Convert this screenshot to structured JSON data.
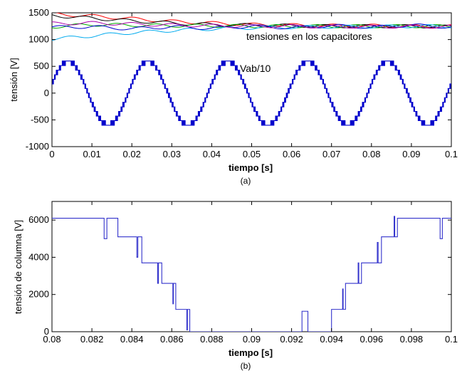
{
  "chart_data": [
    {
      "type": "line",
      "xlabel": "tiempo [s]",
      "ylabel": "tensión [V]",
      "xlim": [
        0,
        0.1
      ],
      "ylim": [
        -1000,
        1500
      ],
      "xticks": [
        "0",
        "0.01",
        "0.02",
        "0.03",
        "0.04",
        "0.05",
        "0.06",
        "0.07",
        "0.08",
        "0.09",
        "0.1"
      ],
      "yticks": [
        "-1000",
        "-500",
        "0",
        "500",
        "1000",
        "1500"
      ],
      "grid": false,
      "caption": "(a)",
      "annotations": [
        {
          "text": "tensiones en los capacitores",
          "x": 0.052,
          "y": 1080
        },
        {
          "text": "Vab/10",
          "x": 0.052,
          "y": 580
        }
      ],
      "series": [
        {
          "label": "Vab/10",
          "color": "#0000cc",
          "kind": "staircase-sine",
          "amplitude": 600,
          "frequency_hz": 50,
          "levels": 7
        },
        {
          "color": "#ff0000",
          "x": [
            0,
            0.01,
            0.02,
            0.03,
            0.04,
            0.05,
            0.06,
            0.07,
            0.08,
            0.09,
            0.1
          ],
          "values": [
            1480,
            1440,
            1390,
            1340,
            1310,
            1280,
            1270,
            1260,
            1260,
            1250,
            1250
          ]
        },
        {
          "color": "#000000",
          "x": [
            0,
            0.01,
            0.02,
            0.03,
            0.04,
            0.05,
            0.06,
            0.07,
            0.08,
            0.09,
            0.1
          ],
          "values": [
            1450,
            1400,
            1350,
            1310,
            1280,
            1270,
            1260,
            1250,
            1250,
            1250,
            1240
          ]
        },
        {
          "color": "#00aa00",
          "x": [
            0,
            0.01,
            0.02,
            0.03,
            0.04,
            0.05,
            0.06,
            0.07,
            0.08,
            0.09,
            0.1
          ],
          "values": [
            1240,
            1280,
            1270,
            1260,
            1260,
            1250,
            1250,
            1250,
            1250,
            1250,
            1250
          ]
        },
        {
          "color": "#00aaee",
          "x": [
            0,
            0.01,
            0.02,
            0.03,
            0.04,
            0.05,
            0.06,
            0.07,
            0.08,
            0.09,
            0.1
          ],
          "values": [
            1010,
            1070,
            1130,
            1170,
            1200,
            1220,
            1230,
            1240,
            1240,
            1250,
            1250
          ]
        },
        {
          "color": "#0000cc",
          "x": [
            0,
            0.01,
            0.02,
            0.03,
            0.04,
            0.05,
            0.06,
            0.07,
            0.08,
            0.09,
            0.1
          ],
          "values": [
            1230,
            1240,
            1200,
            1240,
            1210,
            1250,
            1220,
            1260,
            1230,
            1270,
            1230
          ]
        },
        {
          "color": "#aa00aa",
          "x": [
            0,
            0.01,
            0.02,
            0.03,
            0.04,
            0.05,
            0.06,
            0.07,
            0.08,
            0.09,
            0.1
          ],
          "values": [
            1300,
            1310,
            1290,
            1270,
            1260,
            1250,
            1250,
            1240,
            1240,
            1240,
            1240
          ]
        }
      ]
    },
    {
      "type": "line",
      "xlabel": "tiempo [s]",
      "ylabel": "tensión de columna [V]",
      "xlim": [
        0.08,
        0.1
      ],
      "ylim": [
        0,
        7000
      ],
      "xticks": [
        "0.08",
        "0.082",
        "0.084",
        "0.086",
        "0.088",
        "0.09",
        "0.092",
        "0.094",
        "0.096",
        "0.098",
        "0.1"
      ],
      "yticks": [
        "0",
        "2000",
        "4000",
        "6000"
      ],
      "grid": false,
      "caption": "(b)",
      "series": [
        {
          "color": "#3333cc",
          "kind": "step",
          "x": [
            0.08,
            0.0833,
            0.0845,
            0.0855,
            0.0862,
            0.0869,
            0.094,
            0.0947,
            0.0955,
            0.0965,
            0.0973,
            0.1
          ],
          "values": [
            6100,
            5100,
            3700,
            2600,
            1200,
            0,
            1200,
            2600,
            3700,
            5100,
            6100,
            6100
          ]
        }
      ]
    }
  ]
}
